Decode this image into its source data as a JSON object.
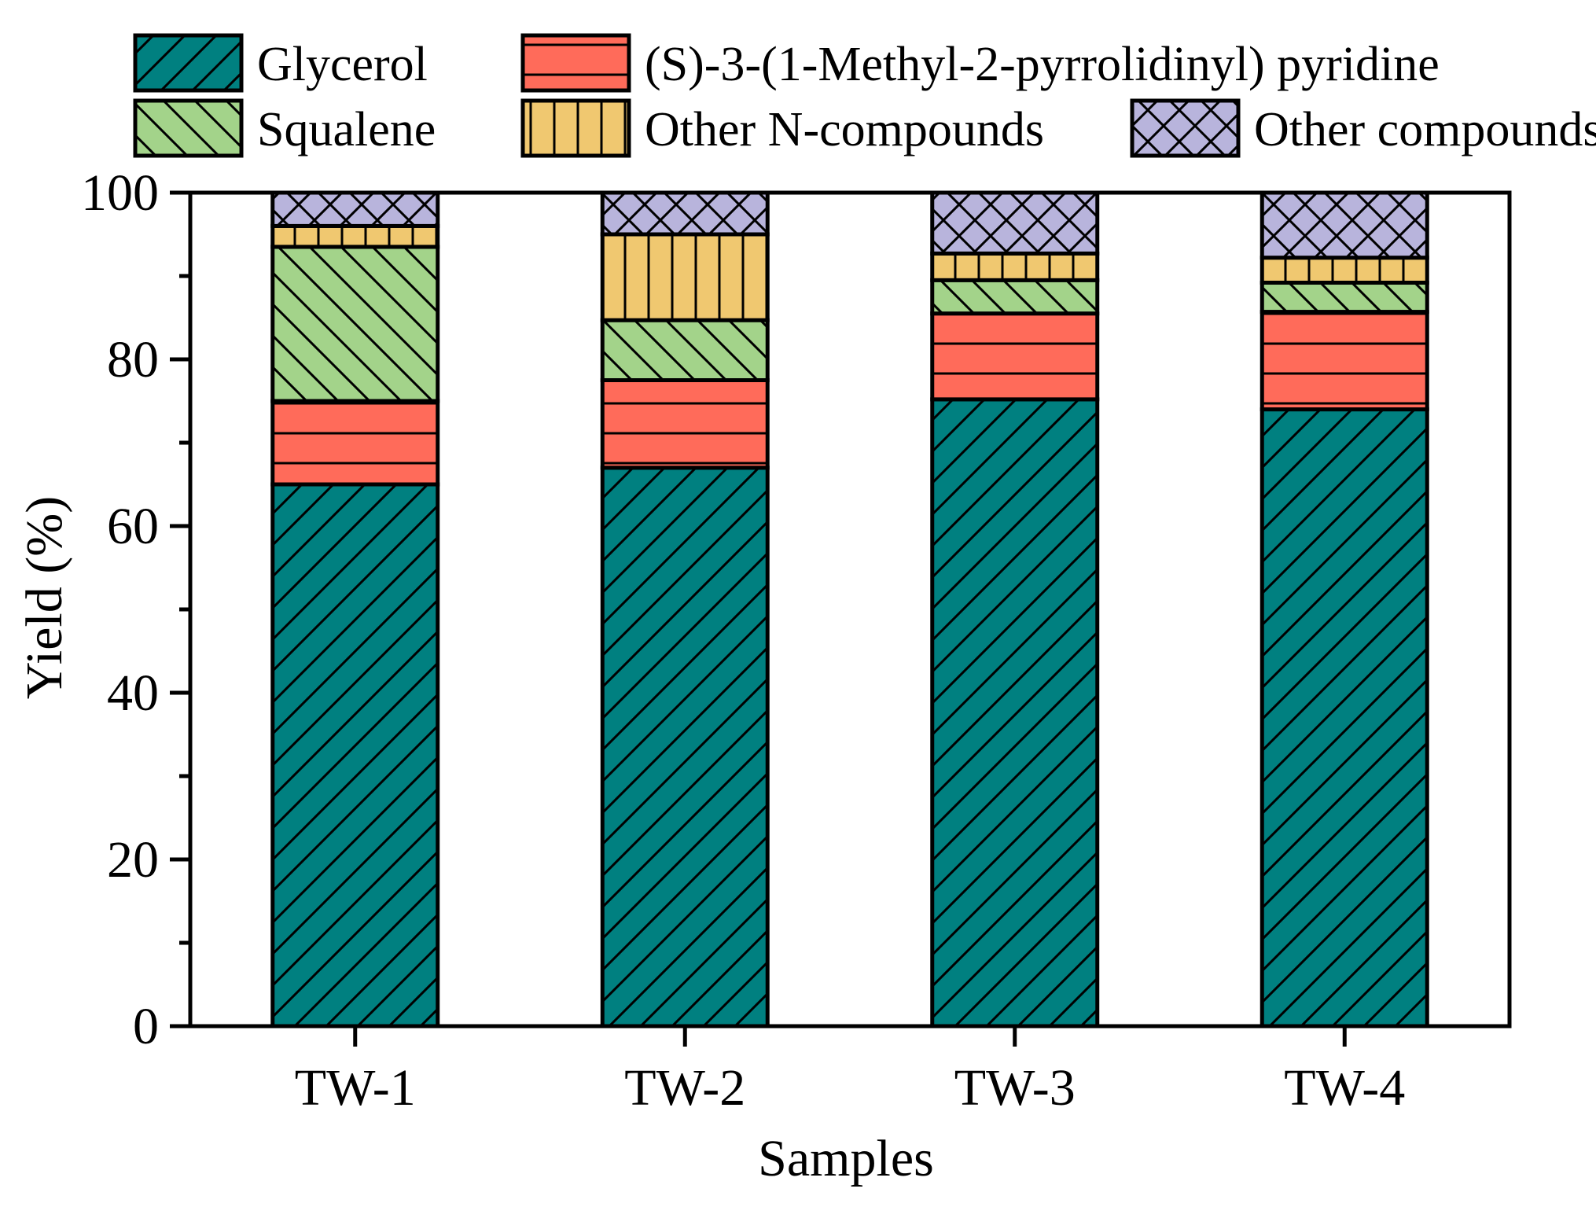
{
  "chart_data": {
    "type": "bar",
    "stacked": true,
    "title": "",
    "xlabel": "Samples",
    "ylabel": "Yield (%)",
    "ylim": [
      0,
      100
    ],
    "yticks": [
      0,
      20,
      40,
      60,
      80,
      100
    ],
    "categories": [
      "TW-1",
      "TW-2",
      "TW-3",
      "TW-4"
    ],
    "legend_position": "top",
    "series": [
      {
        "name": "Glycerol",
        "values": [
          65.0,
          67.0,
          75.2,
          74.0
        ],
        "color": "#008080",
        "pattern": "diagonal-forward"
      },
      {
        "name": "(S)-3-(1-Methyl-2-pyrrolidinyl) pyridine",
        "values": [
          10.0,
          10.5,
          10.3,
          11.7
        ],
        "color": "#FF6B5A",
        "pattern": "horizontal"
      },
      {
        "name": "Squalene",
        "values": [
          18.5,
          7.2,
          4.0,
          3.5
        ],
        "color": "#A3D38A",
        "pattern": "diagonal-back"
      },
      {
        "name": "Other N-compounds",
        "values": [
          2.5,
          10.3,
          3.2,
          3.0
        ],
        "color": "#F0C870",
        "pattern": "vertical"
      },
      {
        "name": "Other compounds",
        "values": [
          4.0,
          5.0,
          7.3,
          7.8
        ],
        "color": "#B8B4DC",
        "pattern": "crosshatch"
      }
    ]
  }
}
